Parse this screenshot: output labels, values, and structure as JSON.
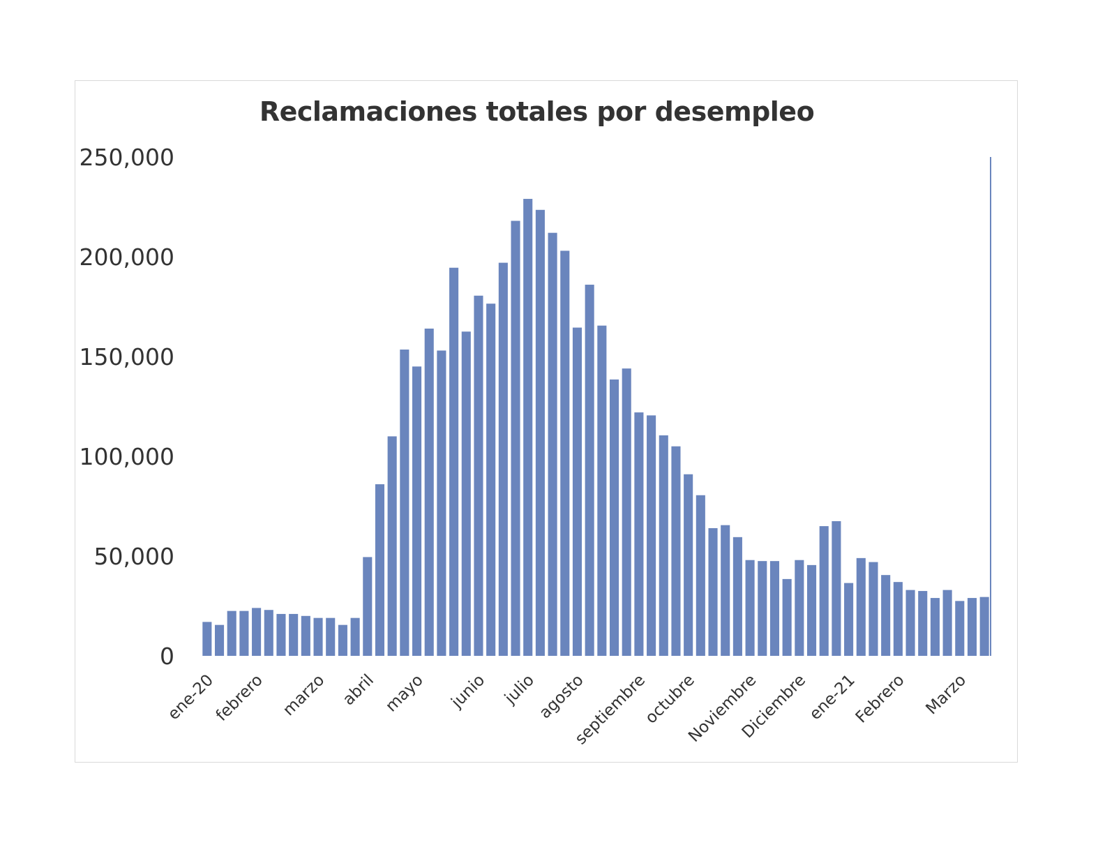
{
  "chart_data": {
    "type": "bar",
    "title": "Reclamaciones totales por desempleo",
    "xlabel": "",
    "ylabel": "",
    "ylim": [
      0,
      250000
    ],
    "yticks": [
      "0",
      "50,000",
      "100,000",
      "150,000",
      "200,000",
      "250,000"
    ],
    "tick_labels": [
      {
        "label": "ene-20",
        "index": 0
      },
      {
        "label": "febrero",
        "index": 4
      },
      {
        "label": "marzo",
        "index": 9
      },
      {
        "label": "abril",
        "index": 13
      },
      {
        "label": "mayo",
        "index": 17
      },
      {
        "label": "junio",
        "index": 22
      },
      {
        "label": "julio",
        "index": 26
      },
      {
        "label": "agosto",
        "index": 30
      },
      {
        "label": "septiembre",
        "index": 35
      },
      {
        "label": "octubre",
        "index": 39
      },
      {
        "label": "Noviembre",
        "index": 44
      },
      {
        "label": "Diciembre",
        "index": 48
      },
      {
        "label": "ene-21",
        "index": 52
      },
      {
        "label": "Febrero",
        "index": 56
      },
      {
        "label": "Marzo",
        "index": 61
      }
    ],
    "values": [
      17000,
      15500,
      22500,
      22500,
      24000,
      23000,
      21000,
      21000,
      20000,
      19000,
      19000,
      15500,
      19000,
      49500,
      86000,
      110000,
      153500,
      145000,
      164000,
      153000,
      194500,
      162500,
      180500,
      176500,
      197000,
      218000,
      229000,
      223500,
      212000,
      203000,
      164500,
      186000,
      165500,
      138500,
      144000,
      122000,
      120500,
      110500,
      105000,
      91000,
      80500,
      64000,
      65500,
      59500,
      48000,
      47500,
      47500,
      38500,
      48000,
      45500,
      65000,
      67500,
      36500,
      49000,
      47000,
      40500,
      37000,
      33000,
      32500,
      29000,
      33000,
      27500,
      29000,
      29500
    ],
    "bar_color": "#6a85bd",
    "grid": false,
    "legend": "none"
  }
}
